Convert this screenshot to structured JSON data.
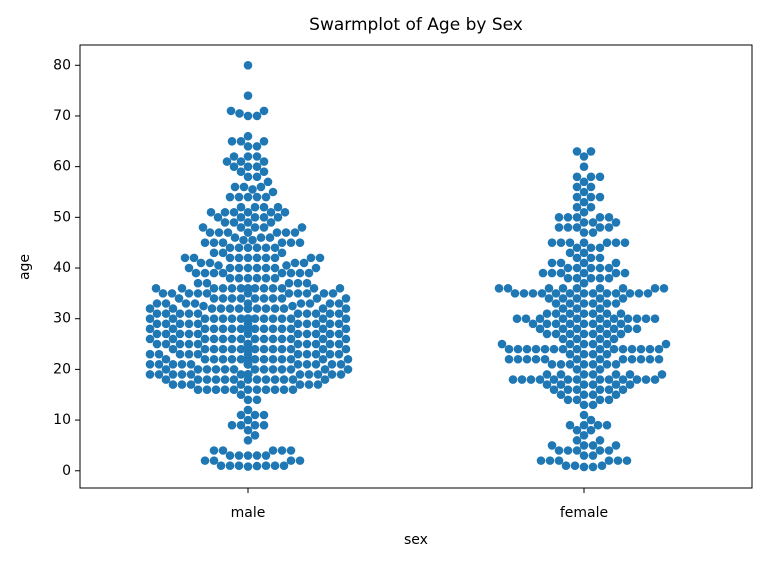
{
  "chart_data": {
    "type": "swarm",
    "title": "Swarmplot of Age by Sex",
    "x_label": "sex",
    "y_label": "age",
    "categories": [
      "male",
      "female"
    ],
    "color": "#1f77b4",
    "ylim": [
      -3.4,
      84
    ],
    "yticks": [
      0,
      10,
      20,
      30,
      40,
      50,
      60,
      70,
      80
    ],
    "values": [
      [
        0.83,
        0.92,
        1,
        1,
        1,
        1,
        1,
        1,
        2,
        2,
        2,
        2,
        3,
        3,
        3,
        3,
        3,
        4,
        4,
        4,
        4,
        4,
        6,
        7,
        8,
        9,
        9,
        9,
        9,
        10,
        11,
        11,
        11,
        12,
        14,
        14,
        15,
        16,
        16,
        16,
        16,
        16,
        16,
        16,
        16,
        16,
        16,
        16,
        17,
        17,
        17,
        17,
        17,
        17,
        17,
        18,
        18,
        18,
        18,
        18,
        18,
        18,
        18,
        18,
        18,
        18,
        18,
        18,
        19,
        19,
        19,
        19,
        19,
        19,
        19,
        19,
        19,
        19,
        19,
        19,
        19,
        19,
        19,
        19,
        19,
        19,
        19,
        20,
        20,
        20,
        20,
        20,
        20,
        20,
        20,
        20,
        20,
        20,
        20,
        20,
        21,
        21,
        21,
        21,
        21,
        21,
        21,
        21,
        21,
        21,
        21,
        21,
        21,
        21,
        21,
        21,
        21,
        21,
        21,
        22,
        22,
        22,
        22,
        22,
        22,
        22,
        22,
        22,
        22,
        22,
        22,
        22,
        22,
        22,
        22,
        23,
        23,
        23,
        23,
        23,
        23,
        23,
        23,
        23,
        23,
        23,
        24,
        24,
        24,
        24,
        24,
        24,
        24,
        24,
        24,
        24,
        24,
        24,
        24,
        24,
        24,
        25,
        25,
        25,
        25,
        25,
        25,
        25,
        25,
        25,
        25,
        25,
        25,
        25,
        25,
        25,
        25,
        25,
        26,
        26,
        26,
        26,
        26,
        26,
        26,
        26,
        26,
        26,
        26,
        26,
        26,
        26,
        27,
        27,
        27,
        27,
        27,
        27,
        27,
        27,
        27,
        27,
        27,
        28,
        28,
        28,
        28,
        28,
        28,
        28,
        28,
        28,
        28,
        28,
        28,
        28,
        28,
        28,
        28,
        28,
        28,
        28,
        28,
        29,
        29,
        29,
        29,
        29,
        29,
        29,
        29,
        29,
        29,
        29,
        29,
        30,
        30,
        30,
        30,
        30,
        30,
        30,
        30,
        30,
        30,
        30,
        30,
        30,
        30,
        30,
        30,
        30,
        30,
        30,
        30,
        30,
        31,
        31,
        31,
        31,
        31,
        31,
        31,
        31,
        31,
        31,
        32,
        32,
        32,
        32,
        32,
        32,
        32,
        32,
        32,
        32,
        32,
        32,
        32,
        32,
        32,
        32.5,
        32.5,
        33,
        33,
        33,
        33,
        33,
        33,
        33,
        33,
        33,
        34,
        34,
        34,
        34,
        34,
        34,
        34,
        34,
        34,
        34,
        34,
        35,
        35,
        35,
        35,
        35,
        35,
        35,
        35,
        35,
        35,
        35,
        36,
        36,
        36,
        36,
        36,
        36,
        36,
        36,
        36,
        36,
        36,
        36,
        36,
        37,
        37,
        37,
        37,
        37,
        38,
        38,
        38,
        38,
        38,
        38,
        39,
        39,
        39,
        39,
        39,
        39,
        39,
        39,
        40,
        40,
        40,
        40,
        40,
        40,
        40,
        40,
        40.5,
        40.5,
        41,
        41,
        41,
        41,
        42,
        42,
        42,
        42,
        42,
        42,
        42,
        42,
        42,
        42,
        43,
        43,
        43,
        44,
        44,
        44,
        44,
        44,
        44,
        45,
        45,
        45,
        45,
        45,
        45,
        45.5,
        45.5,
        46,
        46,
        46,
        47,
        47,
        47,
        47,
        47,
        47,
        47,
        48,
        48,
        48,
        48,
        48,
        49,
        49,
        49,
        49,
        50,
        50,
        50,
        50,
        50,
        51,
        51,
        51,
        51,
        51,
        51,
        52,
        52,
        52,
        52,
        54,
        54,
        54,
        54,
        54,
        55,
        55.5,
        56,
        56,
        56,
        57,
        58,
        58,
        59,
        59,
        60,
        60,
        60,
        61,
        61,
        61,
        62,
        62,
        62,
        64,
        64,
        65,
        65,
        65,
        66,
        70,
        70,
        70.5,
        71,
        71,
        74,
        80
      ],
      [
        0.75,
        0.75,
        1,
        1,
        1,
        2,
        2,
        2,
        2,
        2,
        2,
        3,
        3,
        4,
        4,
        4,
        4,
        4,
        5,
        5,
        5,
        5,
        6,
        6,
        7,
        8,
        8,
        9,
        9,
        9,
        9,
        10,
        11,
        13,
        13,
        14,
        14,
        14,
        14,
        15,
        15,
        15,
        15,
        16,
        16,
        16,
        16,
        16,
        16,
        17,
        17,
        17,
        17,
        17,
        17,
        18,
        18,
        18,
        18,
        18,
        18,
        18,
        18,
        18,
        18,
        18,
        18,
        18,
        19,
        19,
        19,
        19,
        19,
        19,
        19,
        20,
        20,
        21,
        21,
        21,
        21,
        21,
        21,
        21,
        22,
        22,
        22,
        22,
        22,
        22,
        22,
        22,
        22,
        22,
        22,
        22,
        23,
        23,
        23,
        23,
        24,
        24,
        24,
        24,
        24,
        24,
        24,
        24,
        24,
        24,
        24,
        24,
        24,
        24,
        24,
        25,
        25,
        25,
        25,
        25,
        25,
        26,
        26,
        26,
        26,
        27,
        27,
        27,
        27,
        27,
        27,
        27,
        28,
        28,
        28,
        28,
        28,
        28,
        28,
        29,
        29,
        29,
        29,
        29,
        29,
        29,
        29,
        30,
        30,
        30,
        30,
        30,
        30,
        30,
        30,
        30,
        30,
        30,
        31,
        31,
        31,
        31,
        31,
        31,
        31,
        32,
        32,
        32,
        33,
        33,
        33,
        33,
        33,
        33,
        34,
        34,
        34,
        34,
        34,
        35,
        35,
        35,
        35,
        35,
        35,
        35,
        35,
        35,
        35,
        35,
        35,
        35,
        36,
        36,
        36,
        36,
        36,
        36,
        36,
        36,
        36,
        37,
        38,
        38,
        38,
        38,
        38,
        39,
        39,
        39,
        39,
        39,
        39,
        40,
        40,
        40,
        40,
        40,
        41,
        41,
        41,
        41,
        42,
        42,
        42,
        43,
        43,
        44,
        44,
        44,
        45,
        45,
        45,
        45,
        45,
        45,
        45,
        47,
        47,
        48,
        48,
        48,
        48,
        48,
        49,
        49,
        49,
        50,
        50,
        50,
        50,
        50,
        51,
        52,
        52,
        53,
        54,
        54,
        54,
        55,
        56,
        56,
        57,
        58,
        58,
        58,
        60,
        62,
        63,
        63
      ]
    ]
  }
}
